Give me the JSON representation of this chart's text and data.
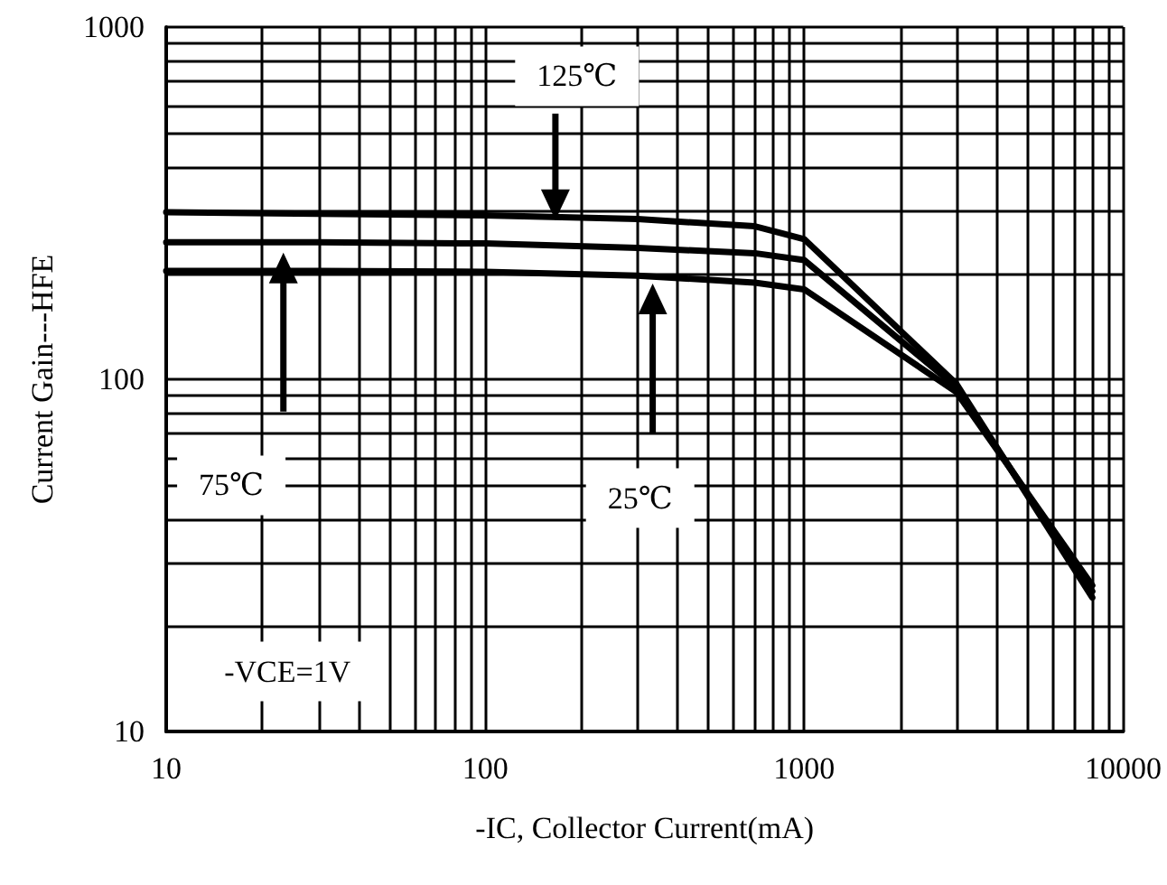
{
  "chart_data": {
    "type": "line",
    "xlabel": "-IC, Collector Current(mA)",
    "ylabel": "Current Gain---HFE",
    "annotations": [
      "125℃",
      "75℃",
      "25℃",
      "-VCE=1V"
    ],
    "log": "xy",
    "grid": true,
    "marker": "none",
    "line_style": "solid",
    "xlim": [
      10,
      10000
    ],
    "ylim": [
      10,
      1000
    ],
    "xticks": [
      10,
      {
        "value": 20,
        "label": null
      },
      {
        "value": 30,
        "label": null
      },
      {
        "value": 40,
        "label": null
      },
      {
        "value": 50,
        "label": null
      },
      {
        "value": 60,
        "label": null
      },
      {
        "value": 70,
        "label": null
      },
      {
        "value": 80,
        "label": null
      },
      {
        "value": 90,
        "label": null
      },
      100,
      {
        "value": 200,
        "label": null
      },
      {
        "value": 300,
        "label": null
      },
      {
        "value": 400,
        "label": null
      },
      {
        "value": 500,
        "label": null
      },
      {
        "value": 600,
        "label": null
      },
      {
        "value": 700,
        "label": null
      },
      {
        "value": 800,
        "label": null
      },
      {
        "value": 900,
        "label": null
      },
      1000,
      {
        "value": 2000,
        "label": null
      },
      {
        "value": 3000,
        "label": null
      },
      {
        "value": 4000,
        "label": null
      },
      {
        "value": 5000,
        "label": null
      },
      {
        "value": 6000,
        "label": null
      },
      {
        "value": 7000,
        "label": null
      },
      {
        "value": 8000,
        "label": null
      },
      {
        "value": 9000,
        "label": null
      },
      10000
    ],
    "yticks": [
      10,
      {
        "value": 20,
        "label": null
      },
      {
        "value": 30,
        "label": null
      },
      {
        "value": 40,
        "label": null
      },
      {
        "value": 50,
        "label": null
      },
      {
        "value": 60,
        "label": null
      },
      {
        "value": 70,
        "label": null
      },
      {
        "value": 80,
        "label": null
      },
      {
        "value": 90,
        "label": null
      },
      100,
      {
        "value": 200,
        "label": null
      },
      {
        "value": 300,
        "label": null
      },
      {
        "value": 400,
        "label": null
      },
      {
        "value": 500,
        "label": null
      },
      {
        "value": 600,
        "label": null
      },
      {
        "value": 700,
        "label": null
      },
      {
        "value": 800,
        "label": null
      },
      {
        "value": 900,
        "label": null
      },
      1000
    ],
    "x": [
      10,
      30,
      100,
      300,
      700,
      1000,
      3000,
      8000
    ],
    "series": [
      {
        "color": "#000000",
        "values": [
          298,
          295,
          292,
          285,
          272,
          250,
          97,
          24
        ]
      },
      {
        "color": "#000000",
        "values": [
          245,
          245,
          243,
          236,
          228,
          218,
          95,
          25
        ]
      },
      {
        "color": "#000000",
        "values": [
          203,
          203,
          202,
          197,
          188,
          180,
          92,
          26
        ]
      }
    ]
  }
}
